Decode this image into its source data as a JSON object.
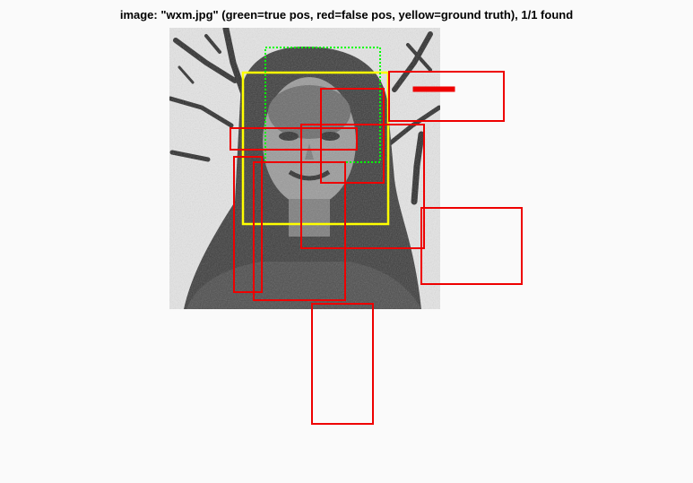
{
  "figure": {
    "title": "image: \"wxm.jpg\" (green=true pos, red=false pos, yellow=ground truth), 1/1 found",
    "photo_subject": "grayscale photo of a person with dark hair in front of tree branches",
    "colors": {
      "background": "#fafafa",
      "true_positive": "#00ff00",
      "false_positive": "#ff0000",
      "ground_truth": "#ffff00"
    }
  }
}
